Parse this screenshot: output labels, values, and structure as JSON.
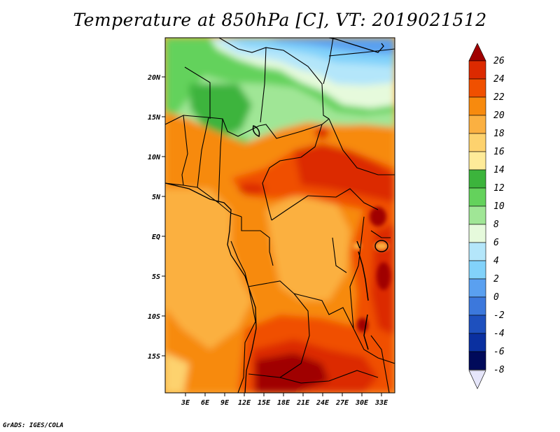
{
  "title": "Temperature at 850hPa [C], VT: 2019021512",
  "credit": "GrADS: IGES/COLA",
  "map": {
    "variable": "Temperature at 850hPa",
    "units": "C",
    "valid_time": "2019021512",
    "lon_range": [
      0,
      35
    ],
    "lat_range": [
      -20,
      25
    ],
    "lon_labels": [
      "3E",
      "6E",
      "9E",
      "12E",
      "15E",
      "18E",
      "21E",
      "24E",
      "27E",
      "30E",
      "33E"
    ],
    "lat_labels": [
      "20N",
      "15N",
      "10N",
      "5N",
      "EQ",
      "5S",
      "10S",
      "15S"
    ]
  },
  "colorbar": {
    "levels": [
      "26",
      "24",
      "22",
      "20",
      "18",
      "16",
      "14",
      "12",
      "10",
      "8",
      "6",
      "4",
      "2",
      "0",
      "-2",
      "-4",
      "-6",
      "-8"
    ],
    "colors": [
      "#a00000",
      "#dc2a00",
      "#f05000",
      "#f78a0e",
      "#fbb041",
      "#fdd26e",
      "#feeb99",
      "#3cb43c",
      "#64d25c",
      "#a0e696",
      "#e6fadc",
      "#b4e6fa",
      "#82d2fa",
      "#5aa0f0",
      "#3c78dc",
      "#1e50be",
      "#0a30a0",
      "#000a5a",
      "#e6e6fa"
    ]
  }
}
